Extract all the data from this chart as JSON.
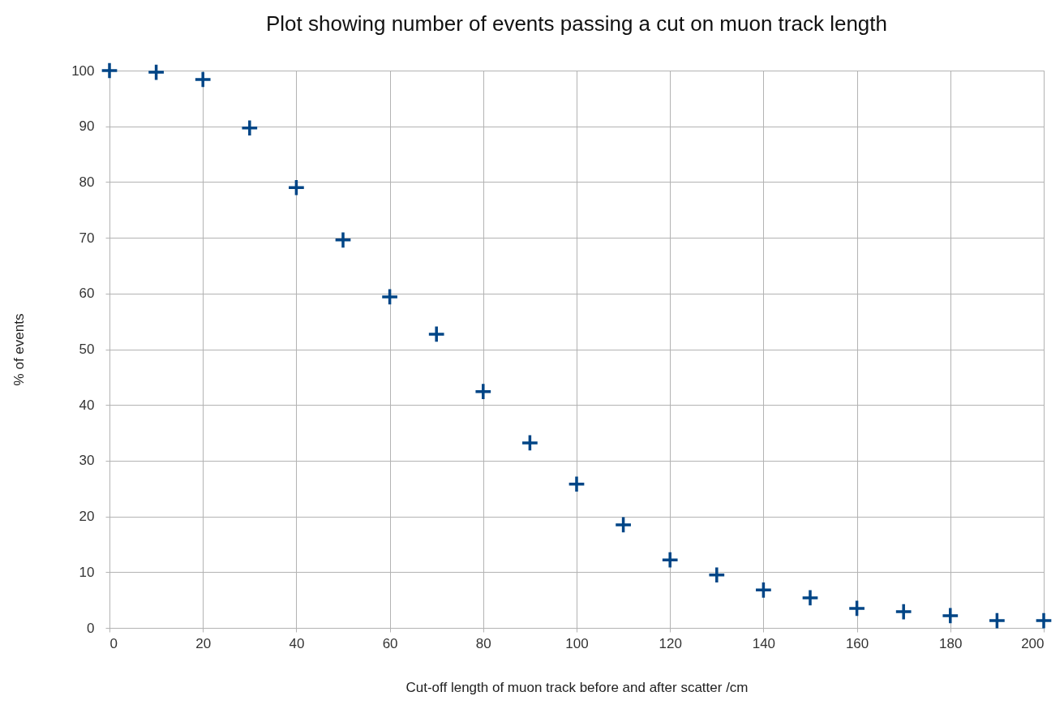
{
  "chart_data": {
    "type": "scatter",
    "title": "Plot showing number of events passing a cut on muon track length",
    "xlabel": "Cut-off length of muon track before and after scatter /cm",
    "ylabel": "% of events",
    "x": [
      0,
      10,
      20,
      30,
      40,
      50,
      60,
      70,
      80,
      90,
      100,
      110,
      120,
      130,
      140,
      150,
      160,
      170,
      180,
      190,
      200
    ],
    "values": [
      100,
      99.7,
      98.4,
      89.7,
      79,
      69.6,
      59.4,
      52.7,
      42.4,
      33.2,
      25.8,
      18.5,
      12.2,
      9.5,
      6.8,
      5.4,
      3.5,
      2.9,
      2.2,
      1.3,
      1.3
    ],
    "color": "#004586",
    "marker": "cross",
    "grid": true,
    "xlim": [
      0,
      200
    ],
    "xticks": [
      0,
      20,
      40,
      60,
      80,
      100,
      120,
      140,
      160,
      180,
      200
    ],
    "ylim": [
      0,
      100
    ],
    "yticks": [
      0,
      10,
      20,
      30,
      40,
      50,
      60,
      70,
      80,
      90,
      100
    ]
  }
}
